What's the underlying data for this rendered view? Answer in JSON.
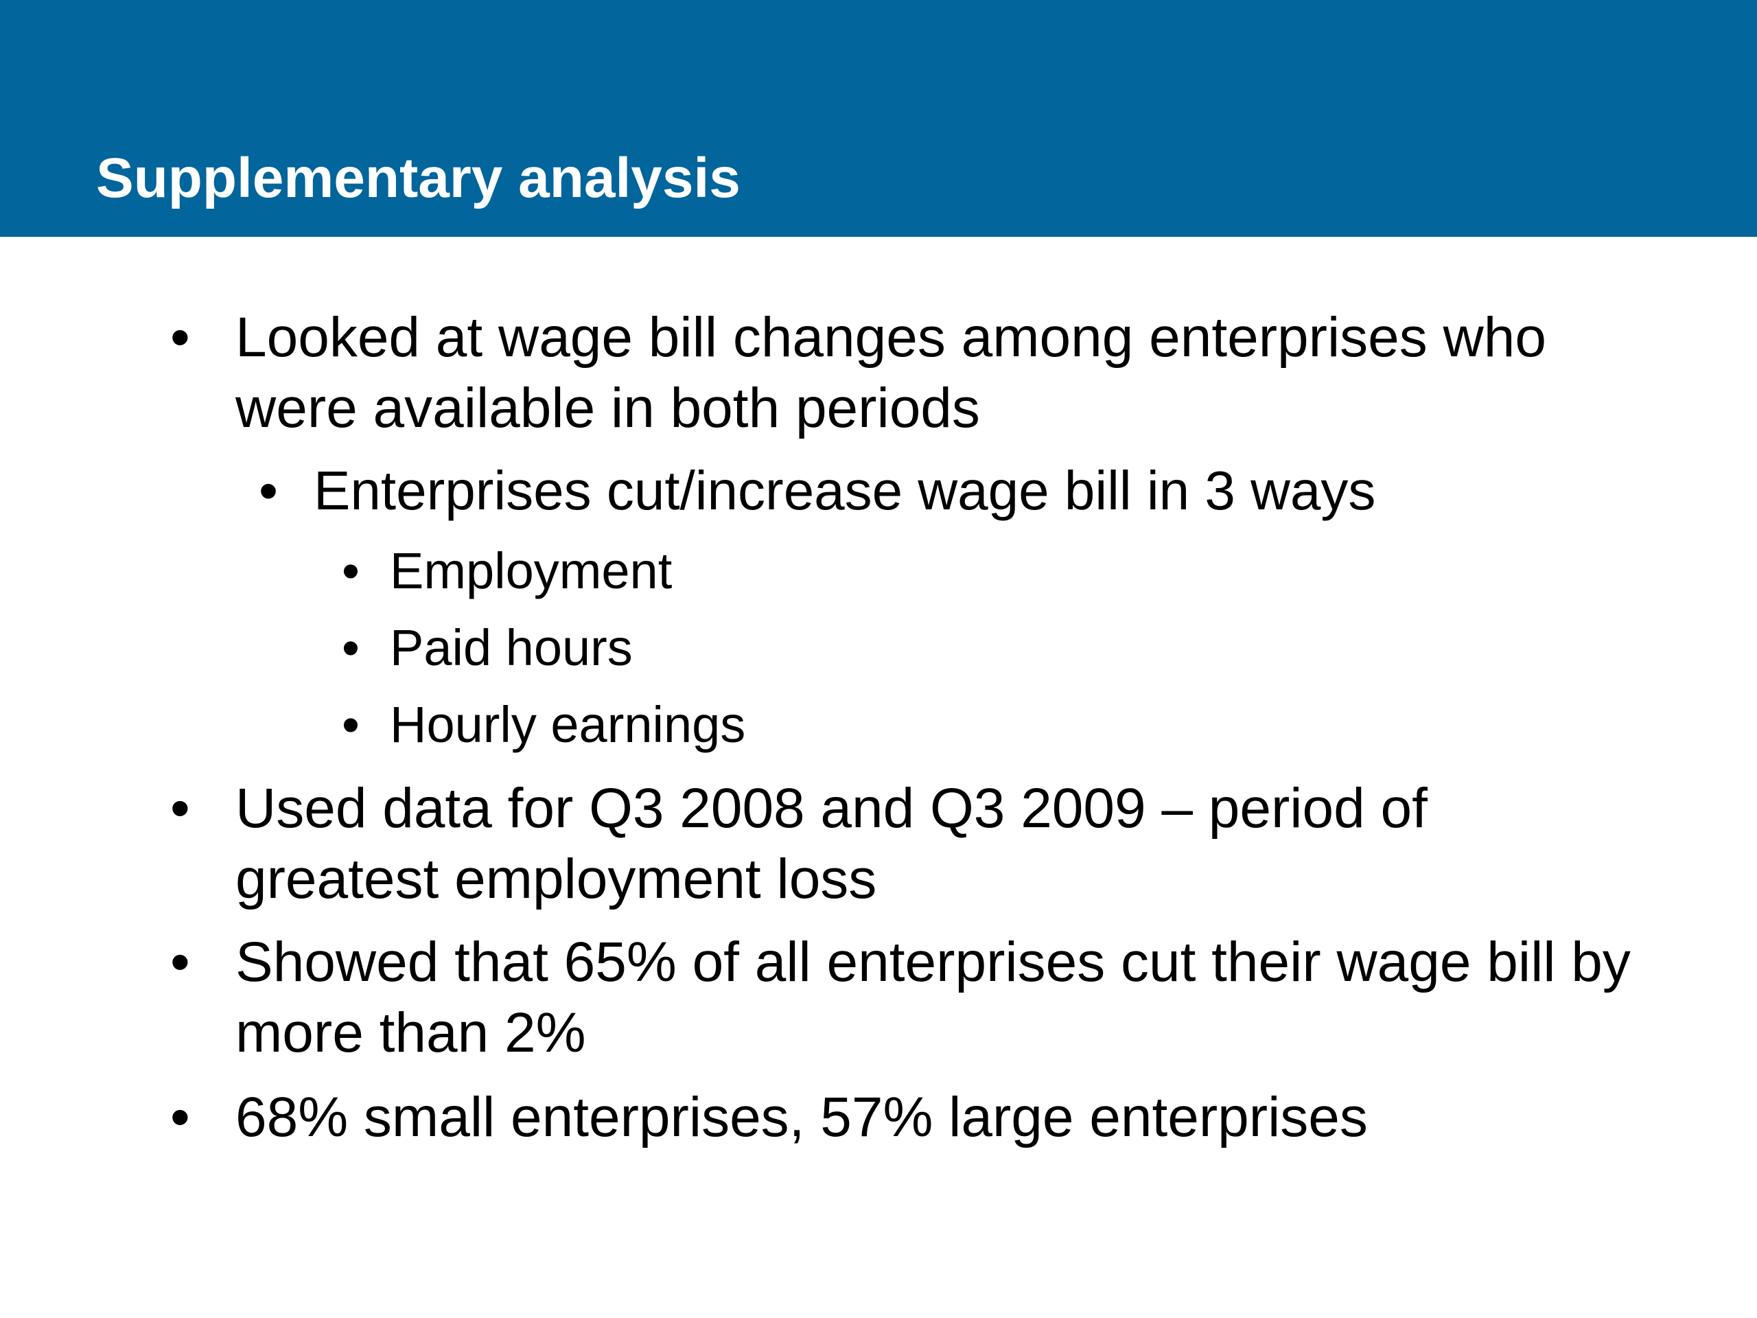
{
  "slide": {
    "title": "Supplementary analysis",
    "bullet_glyph": "•",
    "colors": {
      "header_bar": "#02659b",
      "title_text": "#ffffff",
      "body_text": "#000000",
      "background": "#ffffff"
    },
    "bullets": [
      {
        "level": 1,
        "text": "Looked at wage bill changes among enterprises who were available in both periods"
      },
      {
        "level": 2,
        "text": "Enterprises cut/increase wage bill in 3 ways"
      },
      {
        "level": 3,
        "text": "Employment"
      },
      {
        "level": 3,
        "text": "Paid hours"
      },
      {
        "level": 3,
        "text": "Hourly earnings"
      },
      {
        "level": 1,
        "text": "Used data for Q3 2008 and Q3 2009 – period of greatest employment loss"
      },
      {
        "level": 1,
        "text": "Showed that 65% of all enterprises cut their wage bill by more than 2%"
      },
      {
        "level": 1,
        "text": "68% small enterprises, 57% large enterprises"
      }
    ]
  }
}
